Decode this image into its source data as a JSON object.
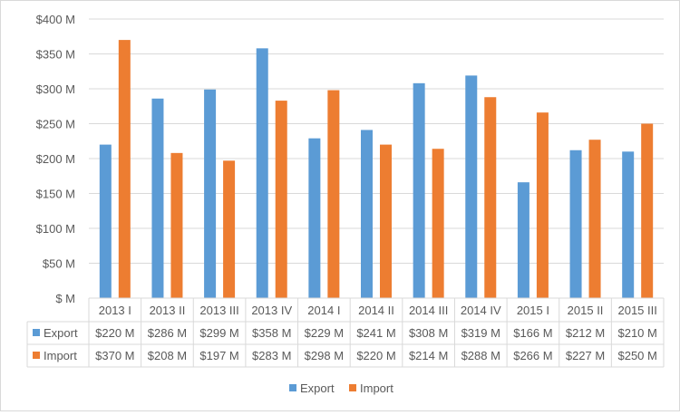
{
  "chart_data": {
    "type": "bar",
    "categories": [
      "2013 I",
      "2013 II",
      "2013 III",
      "2013 IV",
      "2014 I",
      "2014 II",
      "2014 III",
      "2014 IV",
      "2015 I",
      "2015 II",
      "2015 III"
    ],
    "series": [
      {
        "name": "Export",
        "color": "#5b9bd5",
        "values": [
          220,
          286,
          299,
          358,
          229,
          241,
          308,
          319,
          166,
          212,
          210
        ],
        "labels": [
          "$220 M",
          "$286 M",
          "$299 M",
          "$358 M",
          "$229 M",
          "$241 M",
          "$308 M",
          "$319 M",
          "$166 M",
          "$212 M",
          "$210 M"
        ]
      },
      {
        "name": "Import",
        "color": "#ed7d31",
        "values": [
          370,
          208,
          197,
          283,
          298,
          220,
          214,
          288,
          266,
          227,
          250
        ],
        "labels": [
          "$370 M",
          "$208 M",
          "$197 M",
          "$283 M",
          "$298 M",
          "$220 M",
          "$214 M",
          "$288 M",
          "$266 M",
          "$227 M",
          "$250 M"
        ]
      }
    ],
    "y_ticks": [
      0,
      50,
      100,
      150,
      200,
      250,
      300,
      350,
      400
    ],
    "y_tick_labels": [
      "$ M",
      "$50 M",
      "$100 M",
      "$150 M",
      "$200 M",
      "$250 M",
      "$300 M",
      "$350 M",
      "$400 M"
    ],
    "ylim": [
      0,
      400
    ],
    "grid": true,
    "legend_position": "bottom",
    "data_table": true
  }
}
